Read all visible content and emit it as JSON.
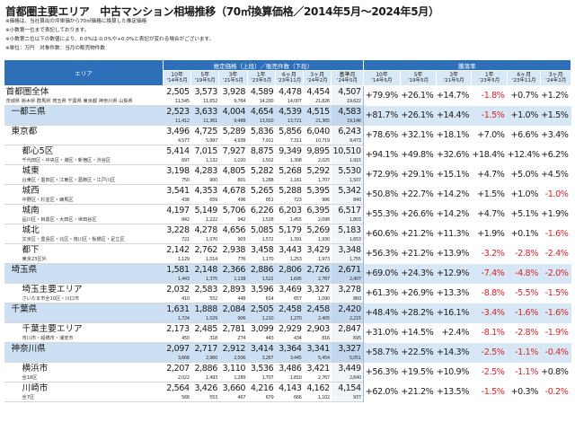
{
  "page": {
    "title": "首都圏主要エリア　中古マンション相場推移（70㎡換算価格／2014年5月〜2024年5月）",
    "notes": [
      "※価格は、当社算出の坪単価から70㎡価格に換算した推定価格",
      "※小数第一位まで表記しております。",
      "※小数第二位以下の数値により、0.0%は-0.0%や+0.0%と表記が変わる場合がございます。",
      "※単位：万円　対象件数：当月の販売物件数"
    ]
  },
  "table": {
    "header": {
      "area": "エリア",
      "price_group": "推定価格（上段）／販売件数（下段）",
      "rate_group": "騰落率",
      "price_cols": [
        {
          "top": "10年",
          "bottom": "'14年5月"
        },
        {
          "top": "5年",
          "bottom": "'19年5月"
        },
        {
          "top": "3年",
          "bottom": "'21年5月"
        },
        {
          "top": "1年",
          "bottom": "'23年5月"
        },
        {
          "top": "6ヶ月",
          "bottom": "'23年11月"
        },
        {
          "top": "3ヶ月",
          "bottom": "'24年2月"
        },
        {
          "top": "基準月",
          "bottom": "'24年5月"
        }
      ],
      "rate_cols": [
        {
          "top": "10年",
          "bottom": "'14年5月"
        },
        {
          "top": "5年",
          "bottom": "'19年5月"
        },
        {
          "top": "3年",
          "bottom": "'21年5月"
        },
        {
          "top": "1年",
          "bottom": "'23年5月"
        },
        {
          "top": "6ヶ月",
          "bottom": "'23年11月"
        },
        {
          "top": "3ヶ月",
          "bottom": "'24年2月"
        }
      ]
    },
    "rows": [
      {
        "name": "首都圏全体",
        "sub": "茨城県 栃木県 群馬県 埼玉県 千葉県 東京都 神奈川県 山梨県",
        "level": 0,
        "region": false,
        "prices": [
          "2,505",
          "3,573",
          "3,928",
          "4,589",
          "4,478",
          "4,454",
          "4,507"
        ],
        "counts": [
          "11,545",
          "11,652",
          "9,764",
          "14,200",
          "14,007",
          "21,826",
          "19,622"
        ],
        "rates": [
          "+79.9%",
          "+26.1%",
          "+14.7%",
          "-1.8%",
          "+0.7%",
          "+1.2%"
        ]
      },
      {
        "name": "一都三県",
        "sub": "",
        "level": 1,
        "region": true,
        "prices": [
          "2,523",
          "3,633",
          "4,004",
          "4,654",
          "4,539",
          "4,515",
          "4,583"
        ],
        "counts": [
          "11,412",
          "11,361",
          "9,488",
          "13,910",
          "13,721",
          "21,365",
          "19,146"
        ],
        "rates": [
          "+81.7%",
          "+26.1%",
          "+14.4%",
          "-1.5%",
          "+1.0%",
          "+1.5%"
        ]
      },
      {
        "name": "東京都",
        "sub": "",
        "level": 1,
        "region": false,
        "prices": [
          "3,496",
          "4,725",
          "5,289",
          "5,836",
          "5,856",
          "6,040",
          "6,243"
        ],
        "counts": [
          "4,577",
          "5,997",
          "4,938",
          "7,911",
          "7,311",
          "10,719",
          "9,473"
        ],
        "rates": [
          "+78.6%",
          "+32.1%",
          "+18.1%",
          "+7.0%",
          "+6.6%",
          "+3.4%"
        ]
      },
      {
        "name": "都心5区",
        "sub": "千代田区・中央区・港区・新宿区・渋谷区",
        "level": 2,
        "region": false,
        "prices": [
          "5,414",
          "7,015",
          "7,927",
          "8,875",
          "9,349",
          "9,895",
          "10,510"
        ],
        "counts": [
          "697",
          "1,132",
          "1,020",
          "1,502",
          "1,308",
          "2,025",
          "1,915"
        ],
        "rates": [
          "+94.1%",
          "+49.8%",
          "+32.6%",
          "+18.4%",
          "+12.4%",
          "+6.2%"
        ]
      },
      {
        "name": "城東",
        "sub": "台東区・墨田区・江東区・葛飾区・江戸川区",
        "level": 2,
        "region": false,
        "prices": [
          "3,198",
          "4,283",
          "4,805",
          "5,282",
          "5,268",
          "5,292",
          "5,530"
        ],
        "counts": [
          "750",
          "900",
          "801",
          "1,288",
          "1,181",
          "1,707",
          "1,507"
        ],
        "rates": [
          "+72.9%",
          "+29.1%",
          "+15.1%",
          "+4.7%",
          "+5.0%",
          "+4.5%"
        ]
      },
      {
        "name": "城西",
        "sub": "中野区・杉並区・練馬区",
        "level": 2,
        "region": false,
        "prices": [
          "3,541",
          "4,353",
          "4,678",
          "5,265",
          "5,288",
          "5,395",
          "5,342"
        ],
        "counts": [
          "438",
          "659",
          "496",
          "851",
          "723",
          "986",
          "840"
        ],
        "rates": [
          "+50.8%",
          "+22.7%",
          "+14.2%",
          "+1.5%",
          "+1.0%",
          "-1.0%"
        ]
      },
      {
        "name": "城南",
        "sub": "品川区・目黒区・大田区・世田谷区",
        "level": 2,
        "region": false,
        "prices": [
          "4,197",
          "5,149",
          "5,706",
          "6,226",
          "6,203",
          "6,395",
          "6,517"
        ],
        "counts": [
          "842",
          "1,222",
          "942",
          "1,528",
          "1,455",
          "2,098",
          "1,803"
        ],
        "rates": [
          "+55.3%",
          "+26.6%",
          "+14.2%",
          "+4.7%",
          "+5.1%",
          "+1.9%"
        ]
      },
      {
        "name": "城北",
        "sub": "文京区・豊島区・北区・荒川区・板橋区・足立区",
        "level": 2,
        "region": false,
        "prices": [
          "3,228",
          "4,278",
          "4,656",
          "5,085",
          "5,179",
          "5,269",
          "5,183"
        ],
        "counts": [
          "721",
          "1,070",
          "903",
          "1,572",
          "1,391",
          "1,930",
          "1,653"
        ],
        "rates": [
          "+60.6%",
          "+21.2%",
          "+11.3%",
          "+1.9%",
          "+0.1%",
          "-1.6%"
        ]
      },
      {
        "name": "都下",
        "sub": "東京23区外",
        "level": 2,
        "region": false,
        "prices": [
          "2,142",
          "2,762",
          "2,938",
          "3,458",
          "3,443",
          "3,429",
          "3,348"
        ],
        "counts": [
          "1,129",
          "1,014",
          "776",
          "1,170",
          "1,253",
          "1,973",
          "1,755"
        ],
        "rates": [
          "+56.3%",
          "+21.2%",
          "+13.9%",
          "-3.2%",
          "-2.8%",
          "-2.4%"
        ]
      },
      {
        "name": "埼玉県",
        "sub": "",
        "level": 1,
        "region": true,
        "prices": [
          "1,581",
          "2,148",
          "2,366",
          "2,886",
          "2,806",
          "2,726",
          "2,671"
        ],
        "counts": [
          "1,443",
          "1,375",
          "1,138",
          "1,522",
          "1,695",
          "2,787",
          "2,407"
        ],
        "rates": [
          "+69.0%",
          "+24.3%",
          "+12.9%",
          "-7.4%",
          "-4.8%",
          "-2.0%"
        ]
      },
      {
        "name": "埼玉主要エリア",
        "sub": "さいたま市全10区・川口市",
        "level": 2,
        "region": false,
        "prices": [
          "2,032",
          "2,583",
          "2,893",
          "3,596",
          "3,469",
          "3,327",
          "3,278"
        ],
        "counts": [
          "410",
          "552",
          "448",
          "614",
          "657",
          "1,090",
          "860"
        ],
        "rates": [
          "+61.3%",
          "+26.9%",
          "+13.3%",
          "-8.8%",
          "-5.5%",
          "-1.5%"
        ]
      },
      {
        "name": "千葉県",
        "sub": "",
        "level": 1,
        "region": true,
        "prices": [
          "1,631",
          "1,888",
          "2,084",
          "2,505",
          "2,458",
          "2,458",
          "2,420"
        ],
        "counts": [
          "1,724",
          "1,029",
          "906",
          "1,210",
          "1,270",
          "2,405",
          "2,215"
        ],
        "rates": [
          "+48.4%",
          "+28.2%",
          "+16.1%",
          "-3.4%",
          "-1.6%",
          "-1.6%"
        ]
      },
      {
        "name": "千葉主要エリア",
        "sub": "市川市・船橋市・浦安市",
        "level": 2,
        "region": false,
        "prices": [
          "2,173",
          "2,485",
          "2,781",
          "3,099",
          "2,929",
          "2,903",
          "2,847"
        ],
        "counts": [
          "450",
          "318",
          "274",
          "443",
          "434",
          "816",
          "695"
        ],
        "rates": [
          "+31.0%",
          "+14.5%",
          "+2.4%",
          "-8.1%",
          "-2.8%",
          "-1.9%"
        ]
      },
      {
        "name": "神奈川県",
        "sub": "",
        "level": 1,
        "region": true,
        "prices": [
          "2,097",
          "2,717",
          "2,912",
          "3,414",
          "3,364",
          "3,341",
          "3,327"
        ],
        "counts": [
          "3,668",
          "2,960",
          "2,506",
          "3,267",
          "3,445",
          "5,454",
          "5,051"
        ],
        "rates": [
          "+58.7%",
          "+22.5%",
          "+14.3%",
          "-2.5%",
          "-1.1%",
          "-0.4%"
        ]
      },
      {
        "name": "横浜市",
        "sub": "全18区",
        "level": 2,
        "region": false,
        "prices": [
          "2,207",
          "2,886",
          "3,110",
          "3,536",
          "3,486",
          "3,421",
          "3,449"
        ],
        "counts": [
          "2,022",
          "1,493",
          "1,289",
          "1,707",
          "1,810",
          "2,767",
          "2,640"
        ],
        "rates": [
          "+56.3%",
          "+19.5%",
          "+10.9%",
          "-2.5%",
          "-1.1%",
          "+0.8%"
        ]
      },
      {
        "name": "川崎市",
        "sub": "全7区",
        "level": 2,
        "region": false,
        "prices": [
          "2,564",
          "3,426",
          "3,660",
          "4,216",
          "4,143",
          "4,162",
          "4,154"
        ],
        "counts": [
          "568",
          "553",
          "467",
          "679",
          "666",
          "1,102",
          "937"
        ],
        "rates": [
          "+62.0%",
          "+21.2%",
          "+13.5%",
          "-1.5%",
          "+0.3%",
          "-0.2%"
        ]
      }
    ]
  },
  "colors": {
    "header": "#2d6fb8",
    "subheader": "#d9e8f6",
    "region_band": "#cde0f3",
    "negative": "#d4262b"
  }
}
